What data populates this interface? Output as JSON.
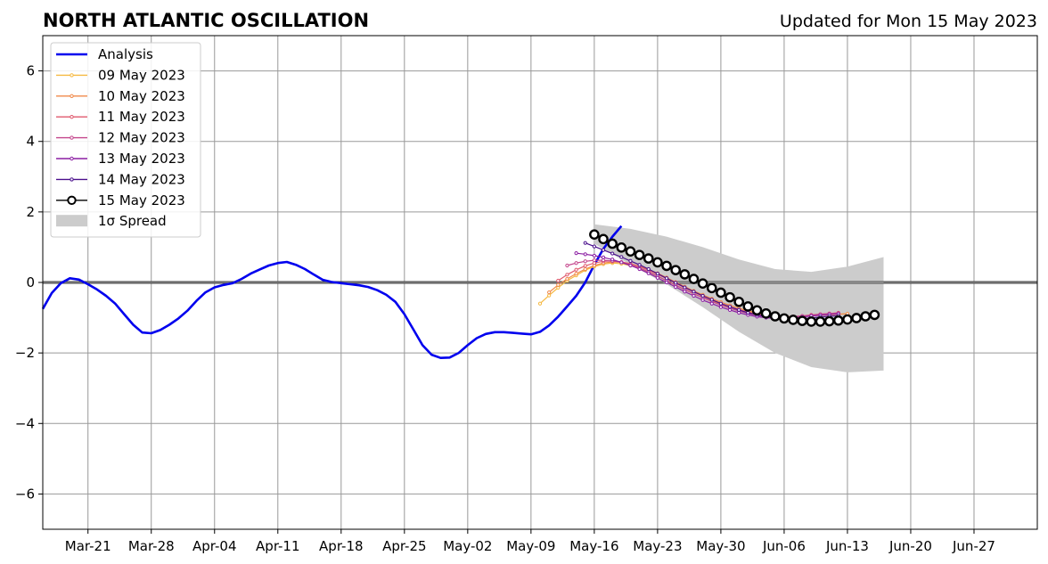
{
  "chart_data": {
    "type": "line",
    "title": "NORTH ATLANTIC OSCILLATION",
    "subtitle": "Updated for Mon 15 May 2023",
    "xlabel": "",
    "ylabel": "",
    "x_range": [
      "2023-03-16",
      "2023-07-04"
    ],
    "ylim": [
      -7,
      7
    ],
    "y_ticks": [
      6,
      4,
      2,
      0,
      -2,
      -4,
      -6
    ],
    "y_tick_labels": [
      "6",
      "4",
      "2",
      "0",
      "−2",
      "−4",
      "−6"
    ],
    "x_ticks": [
      "2023-03-21",
      "2023-03-28",
      "2023-04-04",
      "2023-04-11",
      "2023-04-18",
      "2023-04-25",
      "2023-05-02",
      "2023-05-09",
      "2023-05-16",
      "2023-05-23",
      "2023-05-30",
      "2023-06-06",
      "2023-06-13",
      "2023-06-20",
      "2023-06-27"
    ],
    "x_tick_labels": [
      "Mar-21",
      "Mar-28",
      "Apr-04",
      "Apr-11",
      "Apr-18",
      "Apr-25",
      "May-02",
      "May-09",
      "May-16",
      "May-23",
      "May-30",
      "Jun-06",
      "Jun-13",
      "Jun-20",
      "Jun-27"
    ],
    "grid": true,
    "zero_line": true,
    "legend_position": "top-left",
    "analysis": {
      "name": "Analysis",
      "color": "#0000ee",
      "start": "2023-03-16",
      "values": [
        -0.75,
        -0.3,
        -0.02,
        0.12,
        0.08,
        -0.05,
        -0.2,
        -0.38,
        -0.6,
        -0.9,
        -1.2,
        -1.42,
        -1.44,
        -1.35,
        -1.2,
        -1.02,
        -0.8,
        -0.52,
        -0.28,
        -0.14,
        -0.07,
        -0.02,
        0.1,
        0.25,
        0.37,
        0.48,
        0.55,
        0.58,
        0.5,
        0.38,
        0.22,
        0.07,
        0.01,
        -0.02,
        -0.05,
        -0.08,
        -0.13,
        -0.22,
        -0.35,
        -0.55,
        -0.9,
        -1.34,
        -1.78,
        -2.05,
        -2.14,
        -2.13,
        -2.0,
        -1.78,
        -1.58,
        -1.46,
        -1.41,
        -1.41,
        -1.43,
        -1.45,
        -1.47,
        -1.4,
        -1.22,
        -0.97,
        -0.68,
        -0.38,
        0.0,
        0.5,
        0.95,
        1.3,
        1.6
      ]
    },
    "forecasts": [
      {
        "name": "09 May 2023",
        "color": "#f5b942",
        "start": "2023-05-10",
        "values": [
          -0.6,
          -0.37,
          -0.15,
          0.05,
          0.2,
          0.35,
          0.45,
          0.52,
          0.55,
          0.53,
          0.48,
          0.4,
          0.3,
          0.18,
          0.05,
          -0.08,
          -0.2,
          -0.32,
          -0.43,
          -0.53,
          -0.62,
          -0.7,
          -0.77,
          -0.83,
          -0.88,
          -0.92,
          -0.95,
          -0.97,
          -0.97,
          -0.96,
          -0.94,
          -0.93,
          -0.92,
          -0.9,
          -0.89
        ]
      },
      {
        "name": "10 May 2023",
        "color": "#f08a4b",
        "start": "2023-05-11",
        "values": [
          -0.28,
          -0.07,
          0.1,
          0.25,
          0.38,
          0.48,
          0.55,
          0.58,
          0.57,
          0.53,
          0.46,
          0.37,
          0.26,
          0.14,
          0.01,
          -0.12,
          -0.24,
          -0.35,
          -0.46,
          -0.56,
          -0.65,
          -0.73,
          -0.8,
          -0.86,
          -0.91,
          -0.94,
          -0.97,
          -0.98,
          -0.97,
          -0.95,
          -0.93,
          -0.92,
          -0.9,
          -0.89
        ]
      },
      {
        "name": "11 May 2023",
        "color": "#e05a6e",
        "start": "2023-05-12",
        "values": [
          0.05,
          0.22,
          0.36,
          0.47,
          0.55,
          0.6,
          0.61,
          0.58,
          0.53,
          0.45,
          0.35,
          0.23,
          0.11,
          -0.02,
          -0.15,
          -0.27,
          -0.39,
          -0.5,
          -0.6,
          -0.69,
          -0.77,
          -0.84,
          -0.9,
          -0.94,
          -0.97,
          -0.98,
          -0.97,
          -0.95,
          -0.92,
          -0.9,
          -0.88,
          -0.86
        ]
      },
      {
        "name": "12 May 2023",
        "color": "#c4468c",
        "start": "2023-05-13",
        "values": [
          0.48,
          0.55,
          0.6,
          0.63,
          0.63,
          0.61,
          0.57,
          0.5,
          0.41,
          0.3,
          0.18,
          0.05,
          -0.08,
          -0.2,
          -0.32,
          -0.43,
          -0.54,
          -0.64,
          -0.73,
          -0.81,
          -0.88,
          -0.93,
          -0.97,
          -0.99,
          -0.99,
          -0.97,
          -0.95,
          -0.93,
          -0.9,
          -0.88,
          -0.87
        ]
      },
      {
        "name": "13 May 2023",
        "color": "#8c1fa3",
        "start": "2023-05-14",
        "values": [
          0.83,
          0.8,
          0.76,
          0.71,
          0.65,
          0.57,
          0.48,
          0.38,
          0.26,
          0.13,
          0.0,
          -0.13,
          -0.26,
          -0.38,
          -0.5,
          -0.6,
          -0.7,
          -0.78,
          -0.86,
          -0.92,
          -0.97,
          -1.0,
          -1.02,
          -1.02,
          -1.0,
          -0.98,
          -0.95,
          -0.93,
          -0.91,
          -0.89
        ]
      },
      {
        "name": "14 May 2023",
        "color": "#4a0f8c",
        "start": "2023-05-15",
        "values": [
          1.12,
          1.02,
          0.92,
          0.82,
          0.72,
          0.61,
          0.5,
          0.38,
          0.25,
          0.12,
          -0.01,
          -0.14,
          -0.26,
          -0.38,
          -0.49,
          -0.6,
          -0.69,
          -0.78,
          -0.86,
          -0.92,
          -0.97,
          -1.01,
          -1.03,
          -1.04,
          -1.03,
          -1.01,
          -0.98,
          -0.96,
          -0.94
        ]
      },
      {
        "name": "15 May 2023",
        "color": "#000000",
        "marker": "open-circle",
        "start": "2023-05-16",
        "values": [
          1.36,
          1.23,
          1.1,
          0.99,
          0.88,
          0.78,
          0.68,
          0.57,
          0.47,
          0.35,
          0.23,
          0.1,
          -0.03,
          -0.16,
          -0.29,
          -0.42,
          -0.55,
          -0.68,
          -0.79,
          -0.88,
          -0.96,
          -1.02,
          -1.06,
          -1.09,
          -1.11,
          -1.11,
          -1.1,
          -1.08,
          -1.05,
          -1.01,
          -0.96,
          -0.92
        ]
      }
    ],
    "spread": {
      "name": "1σ Spread",
      "color": "#cccccc",
      "dates": [
        "2023-05-16",
        "2023-05-20",
        "2023-05-24",
        "2023-05-28",
        "2023-06-01",
        "2023-06-05",
        "2023-06-09",
        "2023-06-13",
        "2023-06-17"
      ],
      "upper": [
        1.65,
        1.52,
        1.3,
        1.0,
        0.65,
        0.38,
        0.3,
        0.45,
        0.72
      ],
      "lower": [
        1.1,
        0.5,
        -0.05,
        -0.7,
        -1.4,
        -2.0,
        -2.4,
        -2.55,
        -2.5
      ]
    }
  }
}
